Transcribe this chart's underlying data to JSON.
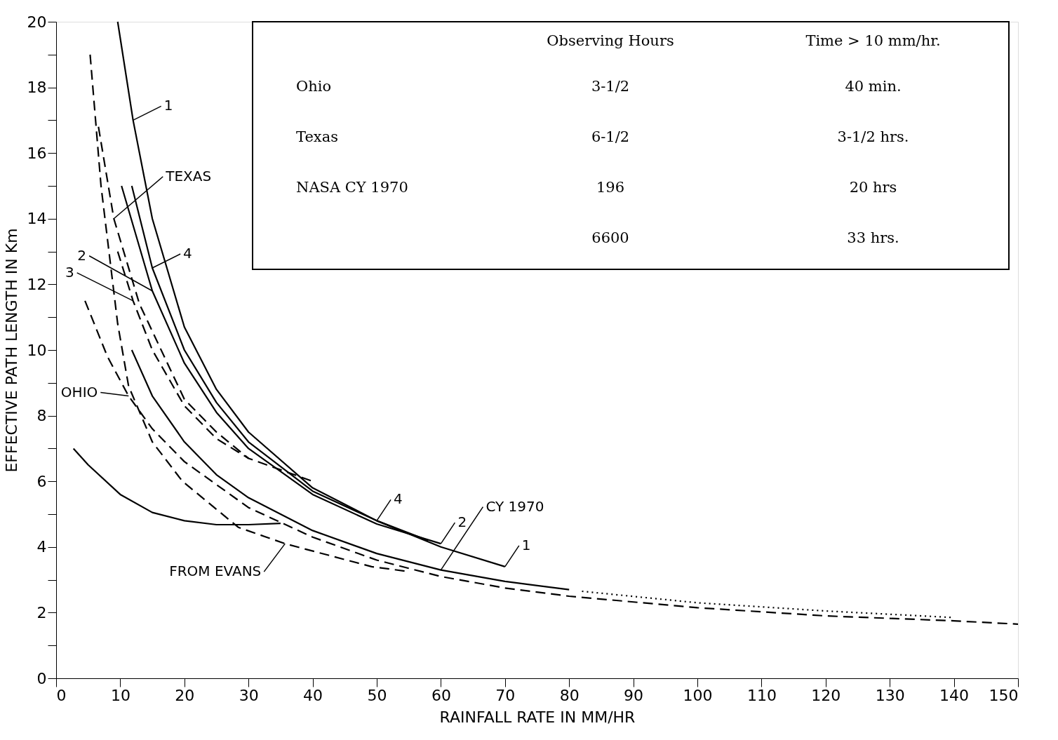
{
  "chart_data": {
    "type": "line",
    "xlabel": "RAINFALL RATE IN MM/HR",
    "ylabel": "EFFECTIVE PATH LENGTH IN Km",
    "xlim": [
      0,
      150
    ],
    "ylim": [
      0,
      20
    ],
    "xticks": [
      0,
      10,
      20,
      30,
      40,
      50,
      60,
      70,
      80,
      90,
      100,
      110,
      120,
      130,
      140,
      150
    ],
    "yticks": [
      0,
      {
        "value": 1,
        "label": null
      },
      2,
      {
        "value": 3,
        "label": null
      },
      4,
      {
        "value": 5,
        "label": null
      },
      6,
      {
        "value": 7,
        "label": null
      },
      8,
      {
        "value": 9,
        "label": null
      },
      10,
      {
        "value": 11,
        "label": null
      },
      12,
      {
        "value": 13,
        "label": null
      },
      14,
      {
        "value": 15,
        "label": null
      },
      16,
      {
        "value": 17,
        "label": null
      },
      18,
      {
        "value": 19,
        "label": null
      },
      20
    ],
    "grid": false,
    "marker": "none",
    "series": [
      {
        "color": "#000000",
        "line_style": "solid",
        "x": [
          9.6,
          12,
          15,
          20,
          25,
          30,
          40,
          50,
          60,
          70
        ],
        "values": [
          20,
          17,
          14,
          10.7,
          8.8,
          7.5,
          5.8,
          4.8,
          4.0,
          3.4
        ]
      },
      {
        "color": "#000000",
        "line_style": "solid",
        "x": [
          11.8,
          15,
          20,
          25,
          30,
          40,
          50,
          58
        ],
        "values": [
          15,
          12.5,
          10,
          8.4,
          7.2,
          5.7,
          4.8,
          4.2
        ]
      },
      {
        "color": "#000000",
        "line_style": "solid",
        "x": [
          10.2,
          15,
          20,
          25,
          30,
          40,
          50,
          60
        ],
        "values": [
          15,
          11.8,
          9.6,
          8.1,
          7.0,
          5.6,
          4.7,
          4.1
        ]
      },
      {
        "color": "#000000",
        "line_style": "dashed",
        "x": [
          9.6,
          12,
          15,
          20,
          25,
          30,
          40
        ],
        "values": [
          13,
          11.5,
          10,
          8.3,
          7.3,
          6.7,
          6.0
        ]
      },
      {
        "color": "#000000",
        "line_style": "dashed",
        "x": [
          6.6,
          9,
          13,
          20,
          25,
          30
        ],
        "values": [
          16.8,
          14,
          11.4,
          8.5,
          7.5,
          6.7
        ]
      },
      {
        "color": "#000000",
        "line_style": "dashed",
        "x": [
          5.3,
          7,
          9.6,
          11.3,
          15,
          19.7,
          28.4,
          35.7,
          49.2,
          55
        ],
        "values": [
          19,
          15,
          10.8,
          8.9,
          7.2,
          6.0,
          4.6,
          4.1,
          3.4,
          3.25
        ]
      },
      {
        "color": "#000000",
        "line_style": "dashed",
        "x": [
          4.5,
          8,
          11.3,
          15,
          20,
          30,
          40,
          50,
          60,
          70,
          80,
          100,
          120,
          140,
          150
        ],
        "values": [
          11.5,
          9.8,
          8.6,
          7.6,
          6.6,
          5.2,
          4.3,
          3.6,
          3.1,
          2.75,
          2.5,
          2.15,
          1.9,
          1.75,
          1.65
        ]
      },
      {
        "color": "#000000",
        "line_style": "solid",
        "x": [
          11.8,
          15,
          20,
          25,
          30,
          40,
          50,
          60,
          70,
          80
        ],
        "values": [
          10,
          8.6,
          7.2,
          6.2,
          5.5,
          4.5,
          3.8,
          3.3,
          2.95,
          2.7
        ]
      },
      {
        "color": "#000000",
        "line_style": "dotted",
        "x": [
          82,
          100,
          120,
          140
        ],
        "values": [
          2.65,
          2.3,
          2.05,
          1.85
        ]
      },
      {
        "color": "#000000",
        "line_style": "solid",
        "x": [
          2.7,
          5,
          10,
          15,
          20,
          25,
          30,
          35
        ],
        "values": [
          7.0,
          6.5,
          5.6,
          5.05,
          4.8,
          4.68,
          4.68,
          4.72
        ]
      }
    ],
    "annotations": [
      {
        "text": "1",
        "x": 12,
        "y": 17
      },
      {
        "text": "TEXAS",
        "x": 9,
        "y": 14
      },
      {
        "text": "4",
        "x": 15,
        "y": 12.5
      },
      {
        "text": "2",
        "x": 15,
        "y": 11.8
      },
      {
        "text": "3",
        "x": 12,
        "y": 11.5
      },
      {
        "text": "OHIO",
        "x": 11.3,
        "y": 8.6
      },
      {
        "text": "CY 1970",
        "x": 60,
        "y": 3.3
      },
      {
        "text": "FROM EVANS",
        "x": 35.7,
        "y": 4.1
      },
      {
        "text": "4",
        "x": 50,
        "y": 4.8
      },
      {
        "text": "2",
        "x": 60,
        "y": 4.1
      },
      {
        "text": "1",
        "x": 70,
        "y": 3.4
      },
      "Observing Hours",
      "Time > 10 mm/hr.",
      "Ohio",
      "3-1/2",
      "40 min.",
      "Texas",
      "6-1/2",
      "3-1/2 hrs.",
      "NASA CY 1970",
      "196",
      "20 hrs",
      null,
      "6600",
      "33 hrs."
    ]
  }
}
